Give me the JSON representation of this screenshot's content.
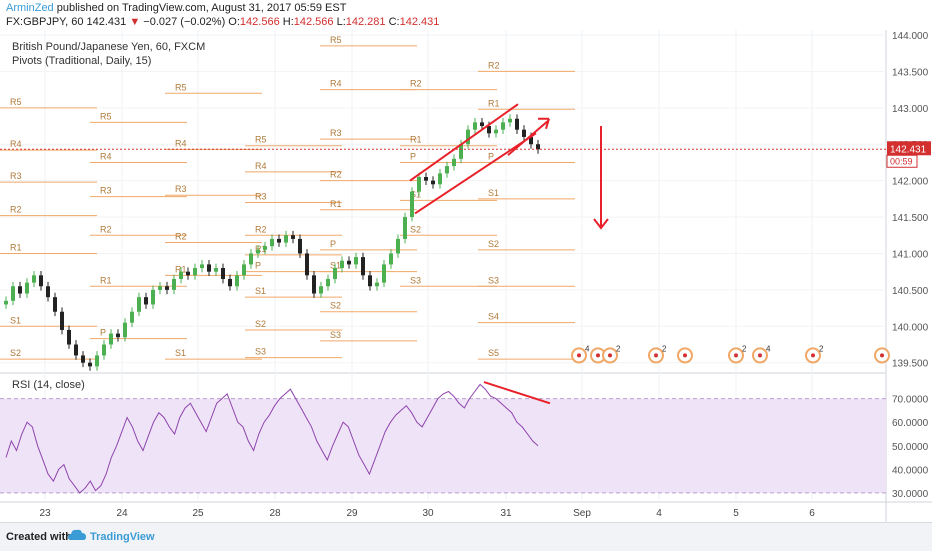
{
  "header": {
    "author": "ArminZed",
    "published_text": "published on TradingView.com, August 31, 2017 05:59 EST",
    "symbol_line": "FX:GBPJPY, 60  142.431",
    "change_arrow": "▼",
    "change": "−0.027 (−0.02%)",
    "ohlc_open_label": "O:",
    "ohlc_open": "142.566",
    "ohlc_high_label": "H:",
    "ohlc_high": "142.566",
    "ohlc_low_label": "L:",
    "ohlc_low": "142.281",
    "ohlc_close_label": "C:",
    "ohlc_close": "142.431"
  },
  "footer": {
    "created_with": "Created with",
    "brand": "TradingView"
  },
  "colors": {
    "price_up": "#4caf50",
    "price_down": "#222222",
    "pivot_line": "#f0a868",
    "pivot_label": "#b07a3a",
    "rsi_line": "#8e44ad",
    "rsi_band": "#efe3f7",
    "current_price": "#d32f2f",
    "annotation": "#e8202a"
  },
  "chart_data": [
    {
      "type": "candlestick",
      "title": "British Pound/Japanese Yen, 60, FXCM",
      "indicator_label": "Pivots (Traditional, Daily, 15)",
      "x_ticks": [
        "23",
        "24",
        "25",
        "28",
        "29",
        "30",
        "31",
        "Sep",
        "4",
        "5",
        "6"
      ],
      "y_ticks": [
        "139.500",
        "140.000",
        "140.500",
        "141.000",
        "141.500",
        "142.000",
        "142.500",
        "143.000",
        "143.500",
        "144.000"
      ],
      "ylim": [
        139.4,
        144.0
      ],
      "current_price": "142.431",
      "countdown": "00:59",
      "pivot_levels": [
        {
          "day": "23",
          "levels": [
            [
              "R5",
              143.0
            ],
            [
              "R4",
              142.42
            ],
            [
              "R3",
              141.98
            ],
            [
              "R2",
              141.52
            ],
            [
              "R1",
              141.0
            ],
            [
              "S1",
              140.0
            ],
            [
              "S2",
              139.55
            ]
          ]
        },
        {
          "day": "24",
          "levels": [
            [
              "R5",
              142.8
            ],
            [
              "R4",
              142.25
            ],
            [
              "R3",
              141.78
            ],
            [
              "R2",
              141.25
            ],
            [
              "R1",
              140.55
            ],
            [
              "P",
              139.83
            ]
          ]
        },
        {
          "day": "25",
          "levels": [
            [
              "R5",
              143.2
            ],
            [
              "R4",
              142.43
            ],
            [
              "R3",
              141.8
            ],
            [
              "R2",
              141.15
            ],
            [
              "R1",
              140.7
            ],
            [
              "S1",
              139.55
            ]
          ]
        },
        {
          "day": "28",
          "levels": [
            [
              "R5",
              142.48
            ],
            [
              "R4",
              142.12
            ],
            [
              "R3",
              141.7
            ],
            [
              "R2",
              141.25
            ],
            [
              "R1",
              140.98
            ],
            [
              "P",
              140.75
            ],
            [
              "S1",
              140.4
            ],
            [
              "S2",
              139.95
            ],
            [
              "S3",
              139.57
            ]
          ]
        },
        {
          "day": "29",
          "levels": [
            [
              "R5",
              143.85
            ],
            [
              "R4",
              143.25
            ],
            [
              "R3",
              142.57
            ],
            [
              "R2",
              142.0
            ],
            [
              "R1",
              141.6
            ],
            [
              "P",
              141.05
            ],
            [
              "S1",
              140.75
            ],
            [
              "S2",
              140.2
            ],
            [
              "S3",
              139.8
            ]
          ]
        },
        {
          "day": "30",
          "levels": [
            [
              "R2",
              143.25
            ],
            [
              "R1",
              142.48
            ],
            [
              "P",
              142.25
            ],
            [
              "S1",
              141.73
            ],
            [
              "S2",
              141.25
            ],
            [
              "S3",
              140.55
            ]
          ]
        },
        {
          "day": "31",
          "levels": [
            [
              "R2",
              143.5
            ],
            [
              "R1",
              142.98
            ],
            [
              "P",
              142.25
            ],
            [
              "S1",
              141.75
            ],
            [
              "S2",
              141.05
            ],
            [
              "S3",
              140.55
            ],
            [
              "S4",
              140.05
            ],
            [
              "S5",
              139.55
            ]
          ]
        }
      ],
      "trend_annotations": [
        "ascending channel",
        "breakout arrow up-right",
        "downward arrow"
      ]
    },
    {
      "type": "line",
      "title": "RSI (14, close)",
      "y_ticks": [
        "30.0000",
        "40.0000",
        "50.0000",
        "60.0000",
        "70.0000"
      ],
      "ylim": [
        27,
        80
      ],
      "overbought": 70,
      "oversold": 30,
      "series": [
        {
          "values": [
            45,
            52,
            48,
            55,
            60,
            58,
            50,
            44,
            38,
            35,
            40,
            42,
            36,
            33,
            30,
            32,
            35,
            31,
            33,
            38,
            45,
            50,
            56,
            62,
            58,
            52,
            48,
            54,
            60,
            64,
            62,
            58,
            55,
            62,
            66,
            68,
            64,
            60,
            56,
            62,
            68,
            70,
            72,
            66,
            60,
            58,
            52,
            48,
            55,
            60,
            63,
            67,
            70,
            72,
            74,
            70,
            66,
            62,
            58,
            52,
            48,
            44,
            50,
            55,
            60,
            58,
            52,
            46,
            42,
            38,
            44,
            50,
            56,
            60,
            63,
            65,
            67,
            64,
            60,
            58,
            62,
            66,
            70,
            72,
            73,
            71,
            68,
            66,
            70,
            73,
            76,
            74,
            71,
            70,
            68,
            66,
            64,
            60,
            58,
            55,
            52,
            50
          ]
        }
      ],
      "trend_annotations": [
        "bearish divergence line"
      ]
    }
  ]
}
